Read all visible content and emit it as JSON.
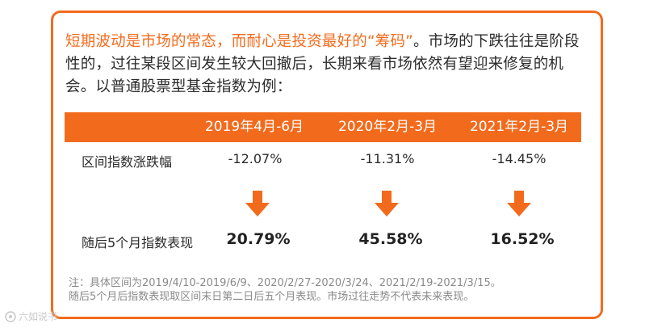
{
  "intro": {
    "highlight": "短期波动是市场的常态，而耐心是投资最好的“筹码”",
    "rest": "。市场的下跌往往是阶段性的，过往某段区间发生较大回撤后，长期来看市场依然有望迎来修复的机会。以普通股票型基金指数为例："
  },
  "table": {
    "columns": [
      "2019年4月-6月",
      "2020年2月-3月",
      "2021年2月-3月"
    ],
    "row1_label": "区间指数涨跌幅",
    "row1_values": [
      "-12.07%",
      "-11.31%",
      "-14.45%"
    ],
    "row2_label": "随后5个月指数表现",
    "row2_values": [
      "20.79%",
      "45.58%",
      "16.52%"
    ]
  },
  "note": {
    "line1": "注：具体区间为2019/4/10-2019/6/9、2020/2/27-2020/3/24、2021/2/19-2021/3/15。",
    "line2": "随后5个月后指数表现取区间末日第二日后五个月表现。市场过往走势不代表未来表现。"
  },
  "watermark": {
    "text": "六如说书",
    "icon": "logo-icon"
  },
  "colors": {
    "accent": "#f26b1d",
    "text": "#2b2b2b",
    "note": "#8a8a8a"
  },
  "icons": {
    "arrow": "arrow-down-icon"
  }
}
